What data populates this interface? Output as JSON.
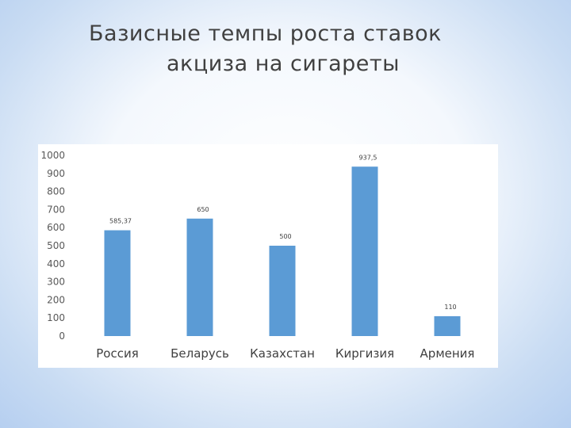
{
  "slide": {
    "title_line1": "Базисные темпы роста ставок",
    "title_line2": "акциза на сигареты"
  },
  "chart_data": {
    "type": "bar",
    "title": "",
    "xlabel": "",
    "ylabel": "",
    "categories": [
      "Россия",
      "Беларусь",
      "Казахстан",
      "Киргизия",
      "Армения"
    ],
    "values": [
      585.37,
      650,
      500,
      937.5,
      110
    ],
    "data_labels": [
      "585,37",
      "650",
      "500",
      "937,5",
      "110"
    ],
    "ylim": [
      0,
      1000
    ],
    "yticks": [
      0,
      100,
      200,
      300,
      400,
      500,
      600,
      700,
      800,
      900,
      1000
    ],
    "grid": false,
    "legend": "none",
    "bar_color": "#5b9bd5"
  }
}
